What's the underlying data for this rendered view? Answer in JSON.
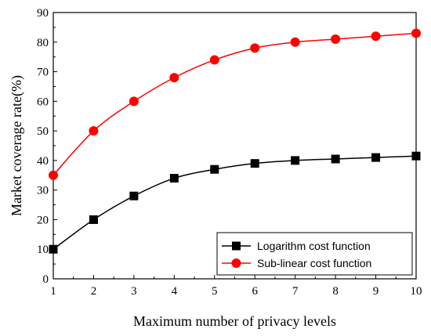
{
  "chart_data": {
    "type": "line",
    "xlabel": "Maximum number of privacy levels",
    "ylabel": "Market coverage rate(%)",
    "xlim": [
      1,
      10
    ],
    "ylim": [
      0,
      90
    ],
    "x_ticks": [
      1,
      2,
      3,
      4,
      5,
      6,
      7,
      8,
      9,
      10
    ],
    "y_ticks": [
      0,
      10,
      20,
      30,
      40,
      50,
      60,
      70,
      80,
      90
    ],
    "grid": false,
    "legend_position": "bottom-right",
    "x": [
      1,
      2,
      3,
      4,
      5,
      6,
      7,
      8,
      9,
      10
    ],
    "series": [
      {
        "name": "Logarithm cost function",
        "color": "#000000",
        "marker": "square",
        "values": [
          10,
          20,
          28,
          34,
          37,
          39,
          40,
          40.5,
          41,
          41.5
        ]
      },
      {
        "name": "Sub-linear cost function",
        "color": "#ff0000",
        "marker": "circle",
        "values": [
          35,
          50,
          60,
          68,
          74,
          78,
          80,
          81,
          82,
          83
        ]
      }
    ]
  }
}
